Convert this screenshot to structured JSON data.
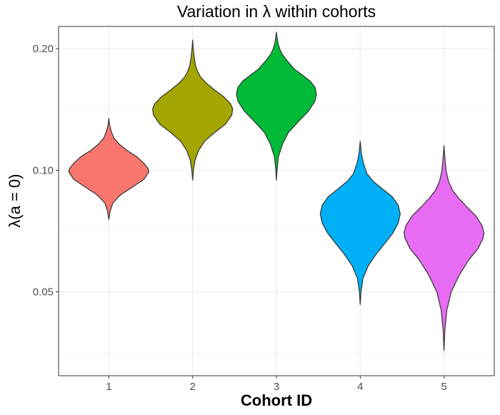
{
  "chart_data": {
    "type": "violin",
    "title": "Variation in  λ  within cohorts",
    "xlabel": "Cohort ID",
    "ylabel": "λ(a = 0)",
    "y_scale": "log",
    "ylim": [
      0.031,
      0.227
    ],
    "y_ticks": [
      0.05,
      0.1,
      0.2
    ],
    "y_tick_labels": [
      "0.05",
      "0.10",
      "0.20"
    ],
    "categories": [
      "1",
      "2",
      "3",
      "4",
      "5"
    ],
    "grid": true,
    "legend": "none",
    "violins": [
      {
        "category": "1",
        "color": "#F8766D",
        "profile": [
          [
            0.0755,
            0
          ],
          [
            0.079,
            0.03
          ],
          [
            0.083,
            0.1
          ],
          [
            0.087,
            0.3
          ],
          [
            0.091,
            0.6
          ],
          [
            0.095,
            0.88
          ],
          [
            0.099,
            1.0
          ],
          [
            0.101,
            0.98
          ],
          [
            0.104,
            0.88
          ],
          [
            0.108,
            0.7
          ],
          [
            0.112,
            0.45
          ],
          [
            0.116,
            0.26
          ],
          [
            0.12,
            0.13
          ],
          [
            0.124,
            0.07
          ],
          [
            0.128,
            0.03
          ],
          [
            0.132,
            0.008
          ],
          [
            0.1345,
            0
          ]
        ]
      },
      {
        "category": "2",
        "color": "#A3A500",
        "profile": [
          [
            0.0945,
            0
          ],
          [
            0.1,
            0.02
          ],
          [
            0.106,
            0.06
          ],
          [
            0.112,
            0.15
          ],
          [
            0.118,
            0.3
          ],
          [
            0.124,
            0.55
          ],
          [
            0.13,
            0.82
          ],
          [
            0.137,
            0.98
          ],
          [
            0.142,
            1.0
          ],
          [
            0.146,
            0.95
          ],
          [
            0.152,
            0.78
          ],
          [
            0.158,
            0.55
          ],
          [
            0.164,
            0.35
          ],
          [
            0.17,
            0.2
          ],
          [
            0.176,
            0.12
          ],
          [
            0.182,
            0.07
          ],
          [
            0.19,
            0.04
          ],
          [
            0.2,
            0.015
          ],
          [
            0.21,
            0
          ]
        ]
      },
      {
        "category": "3",
        "color": "#00BA38",
        "profile": [
          [
            0.0945,
            0
          ],
          [
            0.1,
            0.015
          ],
          [
            0.108,
            0.05
          ],
          [
            0.116,
            0.15
          ],
          [
            0.124,
            0.3
          ],
          [
            0.132,
            0.55
          ],
          [
            0.14,
            0.8
          ],
          [
            0.148,
            0.96
          ],
          [
            0.154,
            1.0
          ],
          [
            0.16,
            0.97
          ],
          [
            0.166,
            0.85
          ],
          [
            0.172,
            0.65
          ],
          [
            0.178,
            0.45
          ],
          [
            0.186,
            0.28
          ],
          [
            0.194,
            0.14
          ],
          [
            0.2,
            0.08
          ],
          [
            0.206,
            0.04
          ],
          [
            0.214,
            0.015
          ],
          [
            0.2195,
            0
          ]
        ]
      },
      {
        "category": "4",
        "color": "#00B0F6",
        "profile": [
          [
            0.0465,
            0
          ],
          [
            0.05,
            0.02
          ],
          [
            0.054,
            0.07
          ],
          [
            0.058,
            0.2
          ],
          [
            0.062,
            0.4
          ],
          [
            0.066,
            0.62
          ],
          [
            0.07,
            0.82
          ],
          [
            0.074,
            0.95
          ],
          [
            0.078,
            1.0
          ],
          [
            0.082,
            0.95
          ],
          [
            0.086,
            0.8
          ],
          [
            0.09,
            0.55
          ],
          [
            0.094,
            0.32
          ],
          [
            0.098,
            0.17
          ],
          [
            0.104,
            0.08
          ],
          [
            0.11,
            0.03
          ],
          [
            0.118,
            0
          ]
        ]
      },
      {
        "category": "5",
        "color": "#E76BF3",
        "profile": [
          [
            0.0358,
            0
          ],
          [
            0.04,
            0.02
          ],
          [
            0.045,
            0.07
          ],
          [
            0.05,
            0.18
          ],
          [
            0.055,
            0.38
          ],
          [
            0.06,
            0.62
          ],
          [
            0.064,
            0.85
          ],
          [
            0.068,
            0.98
          ],
          [
            0.07,
            1.0
          ],
          [
            0.073,
            0.95
          ],
          [
            0.077,
            0.8
          ],
          [
            0.081,
            0.58
          ],
          [
            0.085,
            0.38
          ],
          [
            0.089,
            0.22
          ],
          [
            0.094,
            0.11
          ],
          [
            0.1,
            0.05
          ],
          [
            0.108,
            0.02
          ],
          [
            0.115,
            0
          ]
        ]
      }
    ]
  }
}
